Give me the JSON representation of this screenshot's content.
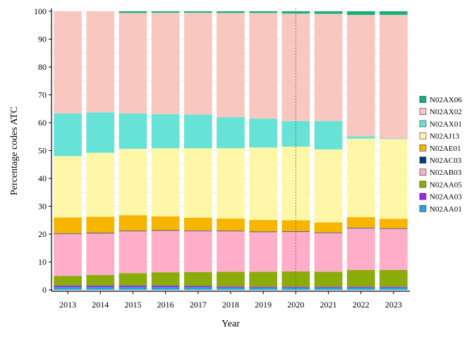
{
  "chart_data": {
    "type": "bar",
    "stacked": true,
    "xlabel": "Year",
    "ylabel": "Percentage codes ATC",
    "ylim": [
      0,
      100
    ],
    "yticks": [
      0,
      10,
      20,
      30,
      40,
      50,
      60,
      70,
      80,
      90,
      100
    ],
    "grid": true,
    "legend_placement": "right",
    "categories": [
      "2013",
      "2014",
      "2015",
      "2016",
      "2017",
      "2018",
      "2019",
      "2020",
      "2021",
      "2022",
      "2023"
    ],
    "reference_line": {
      "x": "2020",
      "style": "dotted"
    },
    "series": [
      {
        "name": "N02AA01",
        "color": "#2b9fd9",
        "values": [
          1.0,
          1.0,
          1.0,
          1.0,
          1.0,
          0.8,
          0.8,
          0.8,
          0.8,
          0.8,
          0.8
        ]
      },
      {
        "name": "N02AA03",
        "color": "#a020f0",
        "values": [
          0.5,
          0.5,
          0.5,
          0.5,
          0.4,
          0.4,
          0.3,
          0.3,
          0.3,
          0.3,
          0.3
        ]
      },
      {
        "name": "N02AA05",
        "color": "#8aab0a",
        "values": [
          3.5,
          3.8,
          4.5,
          4.8,
          5.0,
          5.3,
          5.4,
          5.5,
          5.4,
          6.0,
          6.0
        ]
      },
      {
        "name": "N02AB03",
        "color": "#ffaec9",
        "values": [
          15.1,
          15.0,
          15.0,
          14.9,
          14.7,
          14.5,
          14.2,
          14.2,
          13.9,
          15.0,
          14.8
        ]
      },
      {
        "name": "N02AC03",
        "color": "#003f7f",
        "values": [
          0.2,
          0.2,
          0.2,
          0.2,
          0.2,
          0.2,
          0.2,
          0.2,
          0.2,
          0.2,
          0.2
        ]
      },
      {
        "name": "N02AE01",
        "color": "#f7b500",
        "values": [
          5.7,
          5.7,
          5.6,
          5.0,
          4.6,
          4.4,
          4.2,
          4.0,
          3.6,
          3.8,
          3.4
        ]
      },
      {
        "name": "N02AJ13",
        "color": "#fff7a8",
        "values": [
          22.0,
          23.0,
          23.8,
          24.4,
          24.9,
          25.2,
          26.0,
          26.4,
          26.2,
          28.2,
          28.6
        ]
      },
      {
        "name": "N02AX01",
        "color": "#66e3d6",
        "values": [
          15.3,
          14.5,
          12.7,
          12.3,
          12.1,
          11.2,
          10.4,
          9.2,
          10.2,
          0.8,
          0.2
        ]
      },
      {
        "name": "N02AX02",
        "color": "#f8c8c0",
        "values": [
          36.7,
          36.3,
          36.1,
          36.4,
          36.6,
          37.4,
          37.9,
          38.6,
          38.5,
          43.6,
          44.4
        ]
      },
      {
        "name": "N02AX06",
        "color": "#16b07a",
        "values": [
          0.0,
          0.0,
          0.6,
          0.5,
          0.5,
          0.6,
          0.6,
          0.8,
          0.9,
          1.3,
          1.3
        ]
      }
    ]
  }
}
